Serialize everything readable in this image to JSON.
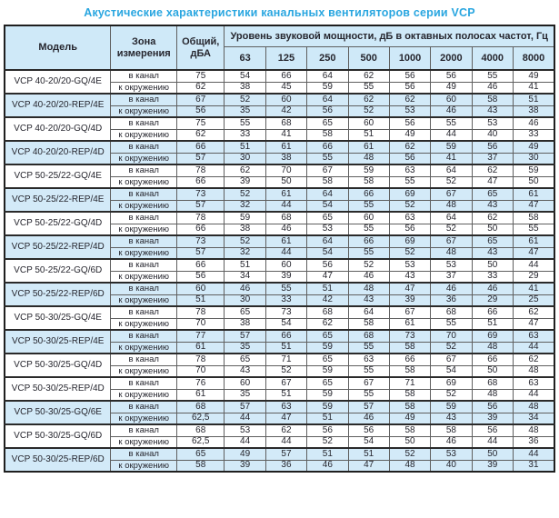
{
  "title": "Акустические характеристики канальных вентиляторов  серии VCP",
  "colors": {
    "accent_title": "#29a6e0",
    "header_bg": "#cfe9f8",
    "stripe_bg": "#d3eaf8",
    "grid_line": "#5f5f5f",
    "group_line": "#1f1f1f"
  },
  "header": {
    "model": "Модель",
    "zone": "Зона измерения",
    "total": "Общий, дБА",
    "bands_title": "Уровень звуковой мощности, дБ в октавных полосах частот, Гц",
    "frequencies": [
      "63",
      "125",
      "250",
      "500",
      "1000",
      "2000",
      "4000",
      "8000"
    ]
  },
  "groups": [
    {
      "model": "VCP 40-20/20-GQ/4E",
      "highlight": false,
      "rows": [
        {
          "zone": "в канал",
          "total": "75",
          "bands": [
            54,
            66,
            64,
            62,
            56,
            56,
            55,
            49
          ]
        },
        {
          "zone": "к окружению",
          "total": "62",
          "bands": [
            38,
            45,
            59,
            55,
            56,
            49,
            46,
            41
          ]
        }
      ]
    },
    {
      "model": "VCP 40-20/20-REP/4E",
      "highlight": true,
      "rows": [
        {
          "zone": "в канал",
          "total": "67",
          "bands": [
            52,
            60,
            64,
            62,
            62,
            60,
            58,
            51
          ]
        },
        {
          "zone": "к окружению",
          "total": "56",
          "bands": [
            35,
            42,
            56,
            52,
            53,
            46,
            43,
            38
          ]
        }
      ]
    },
    {
      "model": "VCP 40-20/20-GQ/4D",
      "highlight": false,
      "rows": [
        {
          "zone": "в канал",
          "total": "75",
          "bands": [
            55,
            68,
            65,
            60,
            56,
            55,
            53,
            46
          ]
        },
        {
          "zone": "к окружению",
          "total": "62",
          "bands": [
            33,
            41,
            58,
            51,
            49,
            44,
            40,
            33
          ]
        }
      ]
    },
    {
      "model": "VCP 40-20/20-REP/4D",
      "highlight": true,
      "rows": [
        {
          "zone": "в канал",
          "total": "66",
          "bands": [
            51,
            61,
            66,
            61,
            62,
            59,
            56,
            49
          ]
        },
        {
          "zone": "к окружению",
          "total": "57",
          "bands": [
            30,
            38,
            55,
            48,
            56,
            41,
            37,
            30
          ]
        }
      ]
    },
    {
      "model": "VCP 50-25/22-GQ/4E",
      "highlight": false,
      "rows": [
        {
          "zone": "в канал",
          "total": "78",
          "bands": [
            62,
            70,
            67,
            59,
            63,
            64,
            62,
            59
          ]
        },
        {
          "zone": "к окружению",
          "total": "66",
          "bands": [
            39,
            50,
            58,
            58,
            55,
            52,
            47,
            50
          ]
        }
      ]
    },
    {
      "model": "VCP 50-25/22-REP/4E",
      "highlight": true,
      "rows": [
        {
          "zone": "в канал",
          "total": "73",
          "bands": [
            52,
            61,
            64,
            66,
            69,
            67,
            65,
            61
          ]
        },
        {
          "zone": "к окружению",
          "total": "57",
          "bands": [
            32,
            44,
            54,
            55,
            52,
            48,
            43,
            47
          ]
        }
      ]
    },
    {
      "model": "VCP 50-25/22-GQ/4D",
      "highlight": false,
      "rows": [
        {
          "zone": "в канал",
          "total": "78",
          "bands": [
            59,
            68,
            65,
            60,
            63,
            64,
            62,
            58
          ]
        },
        {
          "zone": "к окружению",
          "total": "66",
          "bands": [
            38,
            46,
            53,
            55,
            56,
            52,
            50,
            55
          ]
        }
      ]
    },
    {
      "model": "VCP 50-25/22-REP/4D",
      "highlight": true,
      "rows": [
        {
          "zone": "в канал",
          "total": "73",
          "bands": [
            52,
            61,
            64,
            66,
            69,
            67,
            65,
            61
          ]
        },
        {
          "zone": "к окружению",
          "total": "57",
          "bands": [
            32,
            44,
            54,
            55,
            52,
            48,
            43,
            47
          ]
        }
      ]
    },
    {
      "model": "VCP 50-25/22-GQ/6D",
      "highlight": false,
      "rows": [
        {
          "zone": "в канал",
          "total": "66",
          "bands": [
            51,
            60,
            56,
            52,
            53,
            53,
            50,
            44
          ]
        },
        {
          "zone": "к окружению",
          "total": "56",
          "bands": [
            34,
            39,
            47,
            46,
            43,
            37,
            33,
            29
          ]
        }
      ]
    },
    {
      "model": "VCP 50-25/22-REP/6D",
      "highlight": true,
      "rows": [
        {
          "zone": "в канал",
          "total": "60",
          "bands": [
            46,
            55,
            51,
            48,
            47,
            46,
            46,
            41
          ]
        },
        {
          "zone": "к окружению",
          "total": "51",
          "bands": [
            30,
            33,
            42,
            43,
            39,
            36,
            29,
            25
          ]
        }
      ]
    },
    {
      "model": "VCP 50-30/25-GQ/4E",
      "highlight": false,
      "rows": [
        {
          "zone": "в канал",
          "total": "78",
          "bands": [
            65,
            73,
            68,
            64,
            67,
            68,
            66,
            62
          ]
        },
        {
          "zone": "к окружению",
          "total": "70",
          "bands": [
            38,
            54,
            62,
            58,
            61,
            55,
            51,
            47
          ]
        }
      ]
    },
    {
      "model": "VCP 50-30/25-REP/4E",
      "highlight": true,
      "rows": [
        {
          "zone": "в канал",
          "total": "77",
          "bands": [
            57,
            66,
            65,
            68,
            73,
            70,
            69,
            63
          ]
        },
        {
          "zone": "к окружению",
          "total": "61",
          "bands": [
            35,
            51,
            59,
            55,
            58,
            52,
            48,
            44
          ]
        }
      ]
    },
    {
      "model": "VCP 50-30/25-GQ/4D",
      "highlight": false,
      "rows": [
        {
          "zone": "в канал",
          "total": "78",
          "bands": [
            65,
            71,
            65,
            63,
            66,
            67,
            66,
            62
          ]
        },
        {
          "zone": "к окружению",
          "total": "70",
          "bands": [
            43,
            52,
            59,
            55,
            58,
            54,
            50,
            48
          ]
        }
      ]
    },
    {
      "model": "VCP 50-30/25-REP/4D",
      "highlight": false,
      "rows": [
        {
          "zone": "в канал",
          "total": "76",
          "bands": [
            60,
            67,
            65,
            67,
            71,
            69,
            68,
            63
          ]
        },
        {
          "zone": "к окружению",
          "total": "61",
          "bands": [
            35,
            51,
            59,
            55,
            58,
            52,
            48,
            44
          ]
        }
      ]
    },
    {
      "model": "VCP 50-30/25-GQ/6E",
      "highlight": true,
      "rows": [
        {
          "zone": "в канал",
          "total": "68",
          "bands": [
            57,
            63,
            59,
            57,
            58,
            59,
            56,
            48
          ]
        },
        {
          "zone": "к окружению",
          "total": "62,5",
          "bands": [
            44,
            47,
            51,
            46,
            49,
            43,
            39,
            34
          ]
        }
      ]
    },
    {
      "model": "VCP 50-30/25-GQ/6D",
      "highlight": false,
      "rows": [
        {
          "zone": "в канал",
          "total": "68",
          "bands": [
            53,
            62,
            56,
            56,
            58,
            58,
            56,
            48
          ]
        },
        {
          "zone": "к окружению",
          "total": "62,5",
          "bands": [
            44,
            44,
            52,
            54,
            50,
            46,
            44,
            36
          ]
        }
      ]
    },
    {
      "model": "VCP 50-30/25-REP/6D",
      "highlight": true,
      "rows": [
        {
          "zone": "в канал",
          "total": "65",
          "bands": [
            49,
            57,
            51,
            51,
            52,
            53,
            50,
            44
          ]
        },
        {
          "zone": "к окружению",
          "total": "58",
          "bands": [
            39,
            36,
            46,
            47,
            48,
            40,
            39,
            31
          ]
        }
      ]
    }
  ]
}
